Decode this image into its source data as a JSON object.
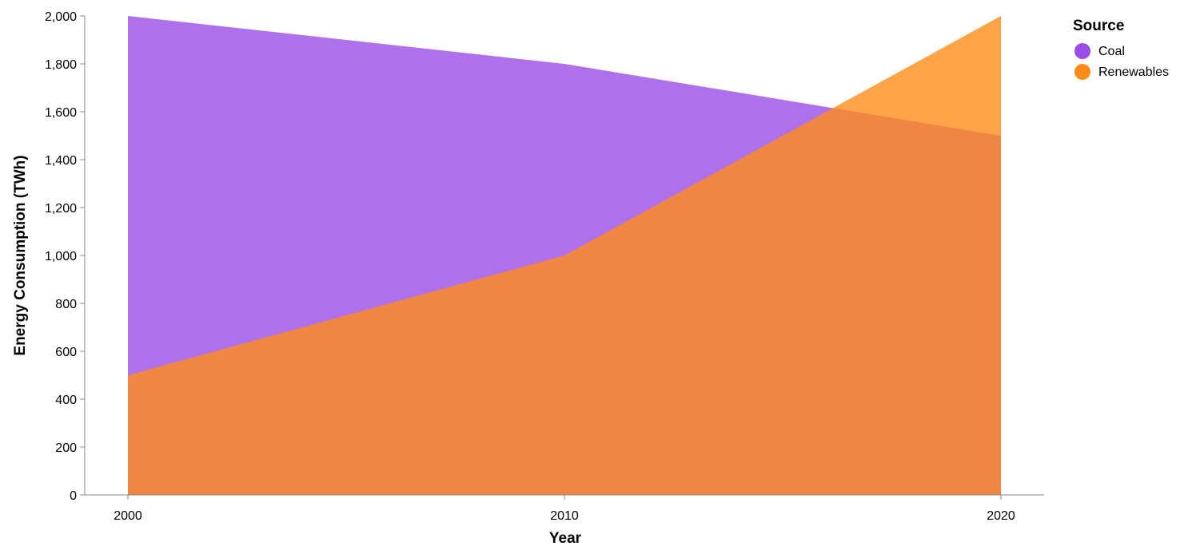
{
  "chart_data": {
    "type": "area",
    "title": "",
    "xlabel": "Year",
    "ylabel": "Energy Consumption (TWh)",
    "x": [
      2000,
      2010,
      2020
    ],
    "x_tick_labels": [
      "2000",
      "2010",
      "2020"
    ],
    "ylim": [
      0,
      2000
    ],
    "y_ticks": [
      0,
      200,
      400,
      600,
      800,
      1000,
      1200,
      1400,
      1600,
      1800,
      2000
    ],
    "y_tick_labels": [
      "0",
      "200",
      "400",
      "600",
      "800",
      "1,000",
      "1,200",
      "1,400",
      "1,600",
      "1,800",
      "2,000"
    ],
    "grid": false,
    "legend": {
      "title": "Source",
      "position": "top-right"
    },
    "series": [
      {
        "name": "Coal",
        "values": [
          2000,
          1800,
          1500
        ],
        "color": "#9B4DE6"
      },
      {
        "name": "Renewables",
        "values": [
          500,
          1000,
          2000
        ],
        "color": "#FF8C1A"
      }
    ]
  }
}
